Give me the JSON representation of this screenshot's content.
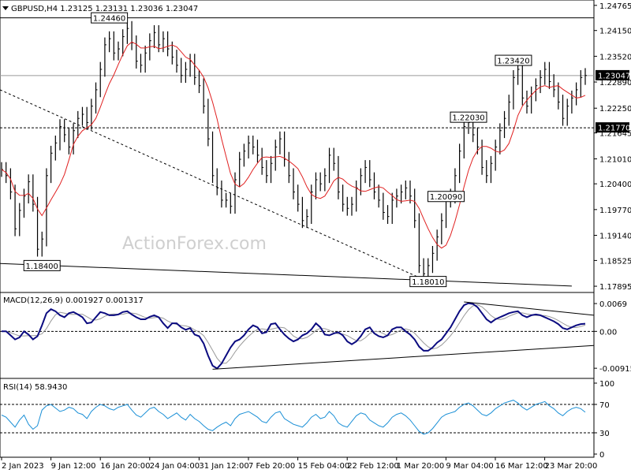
{
  "chart_data": [
    {
      "type": "line",
      "title": "GBPUSD,H4  1.23125 1.23131 1.23036 1.23047",
      "ylim": [
        1.178,
        1.248
      ],
      "y_ticks": [
        "1.24765",
        "1.24150",
        "1.23520",
        "1.22890",
        "1.22250",
        "1.21645",
        "1.21010",
        "1.20400",
        "1.19770",
        "1.19140",
        "1.18525",
        "1.17895"
      ],
      "current_price_label": "1.23047",
      "current_price": 1.23047,
      "level_label": "1.21770",
      "level": 1.2177,
      "x_labels": [
        "2 Jan 2023",
        "9 Jan 12:00",
        "16 Jan 20:00",
        "24 Jan 04:00",
        "31 Jan 12:00",
        "7 Feb 20:00",
        "15 Feb 04:00",
        "22 Feb 12:00",
        "1 Mar 20:00",
        "9 Mar 04:00",
        "16 Mar 12:00",
        "23 Mar 20:00"
      ],
      "annotations": [
        {
          "text": "1.24460",
          "x": 24,
          "y": 1.2446
        },
        {
          "text": "1.23420",
          "x": 114,
          "y": 1.2342
        },
        {
          "text": "1.22030",
          "x": 104,
          "y": 1.2203
        },
        {
          "text": "1.20090",
          "x": 99,
          "y": 1.2009
        },
        {
          "text": "1.18010",
          "x": 95,
          "y": 1.1801
        },
        {
          "text": "1.18400",
          "x": 9,
          "y": 1.184
        }
      ],
      "series": [
        {
          "x": [
            0,
            1,
            2,
            3,
            4,
            5,
            6,
            7,
            8,
            9,
            10,
            11,
            12,
            13,
            14,
            15,
            16,
            17,
            18,
            19,
            20,
            21,
            22,
            23,
            24,
            25,
            26,
            27,
            28,
            29,
            30,
            31,
            32,
            33,
            34,
            35,
            36,
            37,
            38,
            39,
            40,
            41,
            42,
            43,
            44,
            45,
            46,
            47,
            48,
            49,
            50,
            51,
            52,
            53,
            54,
            55,
            56,
            57,
            58,
            59,
            60,
            61,
            62,
            63,
            64,
            65,
            66,
            67,
            68,
            69,
            70,
            71,
            72,
            73,
            74,
            75,
            76,
            77,
            78,
            79,
            80,
            81,
            82,
            83,
            84,
            85,
            86,
            87,
            88,
            89,
            90,
            91,
            92,
            93,
            94,
            95,
            96,
            97,
            98,
            99,
            100,
            101,
            102,
            103,
            104,
            105,
            106,
            107,
            108,
            109,
            110,
            111,
            112,
            113,
            114,
            115,
            116,
            117,
            118,
            119,
            120,
            121,
            122,
            123,
            124,
            125,
            126,
            127,
            128,
            129,
            130
          ],
          "values": [
            1.2075,
            1.206,
            1.202,
            1.193,
            1.1975,
            1.201,
            1.2045,
            1.199,
            1.188,
            1.1905,
            1.206,
            1.2115,
            1.214,
            1.218,
            1.216,
            1.213,
            1.217,
            1.22,
            1.221,
            1.219,
            1.223,
            1.227,
            1.232,
            1.238,
            1.2395,
            1.236,
            1.237,
            1.24,
            1.242,
            1.2385,
            1.234,
            1.233,
            1.236,
            1.239,
            1.241,
            1.238,
            1.2395,
            1.237,
            1.235,
            1.233,
            1.2305,
            1.232,
            1.234,
            1.23,
            1.228,
            1.223,
            1.215,
            1.206,
            1.203,
            1.2,
            1.2,
            1.1985,
            1.205,
            1.21,
            1.212,
            1.214,
            1.213,
            1.211,
            1.208,
            1.206,
            1.209,
            1.213,
            1.215,
            1.21,
            1.206,
            1.202,
            1.199,
            1.195,
            1.196,
            1.202,
            1.205,
            1.204,
            1.206,
            1.211,
            1.209,
            1.202,
            1.199,
            1.198,
            1.199,
            1.203,
            1.206,
            1.208,
            1.205,
            1.202,
            1.2,
            1.197,
            1.196,
            1.2,
            1.201,
            1.202,
            1.203,
            1.201,
            1.195,
            1.184,
            1.182,
            1.184,
            1.187,
            1.191,
            1.195,
            1.2,
            1.201,
            1.206,
            1.212,
            1.218,
            1.219,
            1.216,
            1.213,
            1.208,
            1.206,
            1.209,
            1.213,
            1.217,
            1.22,
            1.224,
            1.23,
            1.232,
            1.225,
            1.223,
            1.226,
            1.228,
            1.23,
            1.232,
            1.229,
            1.227,
            1.224,
            1.22,
            1.223,
            1.225,
            1.227,
            1.23,
            1.2305
          ]
        }
      ]
    },
    {
      "type": "line",
      "title": "MACD(12,26,9) 0.001927 0.001317",
      "ylim": [
        -0.0105,
        0.0075
      ],
      "y_ticks": [
        "0.0069",
        "0.00",
        "-0.009158"
      ],
      "series": [
        {
          "x": [
            0,
            1,
            2,
            3,
            4,
            5,
            6,
            7,
            8,
            9,
            10,
            11,
            12,
            13,
            14,
            15,
            16,
            17,
            18,
            19,
            20,
            21,
            22,
            23,
            24,
            25,
            26,
            27,
            28,
            29,
            30,
            31,
            32,
            33,
            34,
            35,
            36,
            37,
            38,
            39,
            40,
            41,
            42,
            43,
            44,
            45,
            46,
            47,
            48,
            49,
            50,
            51,
            52,
            53,
            54,
            55,
            56,
            57,
            58,
            59,
            60,
            61,
            62,
            63,
            64,
            65,
            66,
            67,
            68,
            69,
            70,
            71,
            72,
            73,
            74,
            75,
            76,
            77,
            78,
            79,
            80,
            81,
            82,
            83,
            84,
            85,
            86,
            87,
            88,
            89,
            90,
            91,
            92,
            93,
            94,
            95,
            96,
            97,
            98,
            99,
            100,
            101,
            102,
            103,
            104,
            105,
            106,
            107,
            108,
            109,
            110,
            111,
            112,
            113,
            114,
            115,
            116,
            117,
            118,
            119,
            120,
            121,
            122,
            123,
            124,
            125,
            126,
            127,
            128,
            129,
            130
          ],
          "values": [
            0.0,
            0.0,
            -0.001,
            -0.002,
            -0.0015,
            0.0,
            -0.0008,
            -0.002,
            -0.0012,
            0.0015,
            0.0045,
            0.0055,
            0.005,
            0.004,
            0.0035,
            0.0045,
            0.0048,
            0.0042,
            0.0035,
            0.002,
            0.0022,
            0.0035,
            0.0048,
            0.0045,
            0.004,
            0.004,
            0.0042,
            0.0048,
            0.005,
            0.0042,
            0.0035,
            0.003,
            0.003,
            0.0036,
            0.004,
            0.0035,
            0.002,
            0.0008,
            0.002,
            0.002,
            0.001,
            0.0004,
            0.0008,
            -0.0008,
            -0.0012,
            -0.003,
            -0.006,
            -0.0085,
            -0.0092,
            -0.008,
            -0.006,
            -0.004,
            -0.0025,
            -0.002,
            -0.001,
            0.0005,
            0.0015,
            0.001,
            -0.0005,
            -0.0002,
            0.0018,
            0.002,
            0.0005,
            -0.0008,
            -0.0018,
            -0.0025,
            -0.002,
            -0.001,
            -0.0005,
            0.0005,
            0.002,
            0.001,
            -0.0008,
            -0.001,
            -0.0005,
            -0.0002,
            -0.001,
            -0.0025,
            -0.0032,
            -0.0025,
            -0.0012,
            0.0005,
            0.001,
            -0.0005,
            -0.0012,
            -0.0015,
            -0.001,
            0.0005,
            0.001,
            0.001,
            0.0,
            -0.0008,
            -0.002,
            -0.0038,
            -0.0048,
            -0.0048,
            -0.004,
            -0.0028,
            -0.002,
            -0.0005,
            0.001,
            0.003,
            0.005,
            0.0065,
            0.007,
            0.0068,
            0.006,
            0.0045,
            0.003,
            0.0022,
            0.003,
            0.0035,
            0.004,
            0.0045,
            0.0048,
            0.005,
            0.004,
            0.0035,
            0.004,
            0.0042,
            0.004,
            0.0035,
            0.003,
            0.0025,
            0.0018,
            0.0008,
            0.0005,
            0.001,
            0.0015,
            0.0018,
            0.0019
          ]
        }
      ]
    },
    {
      "type": "line",
      "title": "RSI(14) 58.9430",
      "ylim": [
        0,
        100
      ],
      "y_ticks": [
        "100",
        "70",
        "30",
        "0"
      ],
      "series": [
        {
          "x": [
            0,
            1,
            2,
            3,
            4,
            5,
            6,
            7,
            8,
            9,
            10,
            11,
            12,
            13,
            14,
            15,
            16,
            17,
            18,
            19,
            20,
            21,
            22,
            23,
            24,
            25,
            26,
            27,
            28,
            29,
            30,
            31,
            32,
            33,
            34,
            35,
            36,
            37,
            38,
            39,
            40,
            41,
            42,
            43,
            44,
            45,
            46,
            47,
            48,
            49,
            50,
            51,
            52,
            53,
            54,
            55,
            56,
            57,
            58,
            59,
            60,
            61,
            62,
            63,
            64,
            65,
            66,
            67,
            68,
            69,
            70,
            71,
            72,
            73,
            74,
            75,
            76,
            77,
            78,
            79,
            80,
            81,
            82,
            83,
            84,
            85,
            86,
            87,
            88,
            89,
            90,
            91,
            92,
            93,
            94,
            95,
            96,
            97,
            98,
            99,
            100,
            101,
            102,
            103,
            104,
            105,
            106,
            107,
            108,
            109,
            110,
            111,
            112,
            113,
            114,
            115,
            116,
            117,
            118,
            119,
            120,
            121,
            122,
            123,
            124,
            125,
            126,
            127,
            128,
            129,
            130
          ],
          "values": [
            55,
            52,
            45,
            38,
            48,
            55,
            42,
            35,
            40,
            62,
            68,
            70,
            65,
            60,
            62,
            66,
            64,
            58,
            56,
            50,
            60,
            66,
            70,
            68,
            64,
            62,
            66,
            68,
            70,
            62,
            55,
            52,
            58,
            64,
            66,
            60,
            56,
            50,
            54,
            58,
            52,
            48,
            56,
            50,
            46,
            40,
            35,
            33,
            38,
            42,
            45,
            40,
            50,
            56,
            58,
            60,
            56,
            52,
            46,
            44,
            52,
            58,
            60,
            50,
            46,
            42,
            40,
            38,
            44,
            52,
            56,
            50,
            52,
            60,
            54,
            44,
            40,
            38,
            46,
            54,
            58,
            56,
            48,
            44,
            40,
            38,
            44,
            52,
            56,
            58,
            54,
            48,
            40,
            32,
            28,
            30,
            36,
            44,
            52,
            56,
            58,
            60,
            66,
            70,
            72,
            68,
            62,
            56,
            54,
            58,
            64,
            68,
            72,
            74,
            76,
            72,
            66,
            62,
            66,
            70,
            72,
            74,
            68,
            64,
            58,
            54,
            60,
            64,
            66,
            64,
            59
          ]
        }
      ]
    }
  ],
  "watermark": "ActionForex.com",
  "colors": {
    "price": "#000000",
    "sma": "#e02020",
    "macd": "#0b0b80",
    "signal": "#999999",
    "rsi": "#1a8fd6",
    "grid": "#000000"
  }
}
